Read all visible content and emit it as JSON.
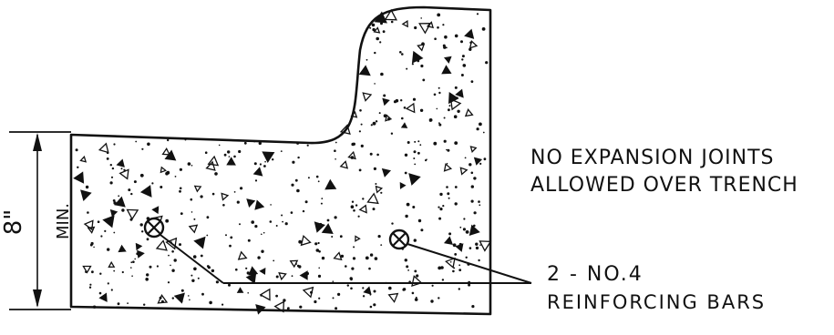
{
  "dimension": {
    "value": "8\"",
    "qualifier": "MIN."
  },
  "notes": {
    "expansion_line1": "NO EXPANSION JOINTS",
    "expansion_line2": "ALLOWED OVER TRENCH"
  },
  "rebar": {
    "line1": "2 - NO.4",
    "line2": "REINFORCING BARS"
  },
  "colors": {
    "ink": "#111111",
    "paper": "#ffffff"
  }
}
